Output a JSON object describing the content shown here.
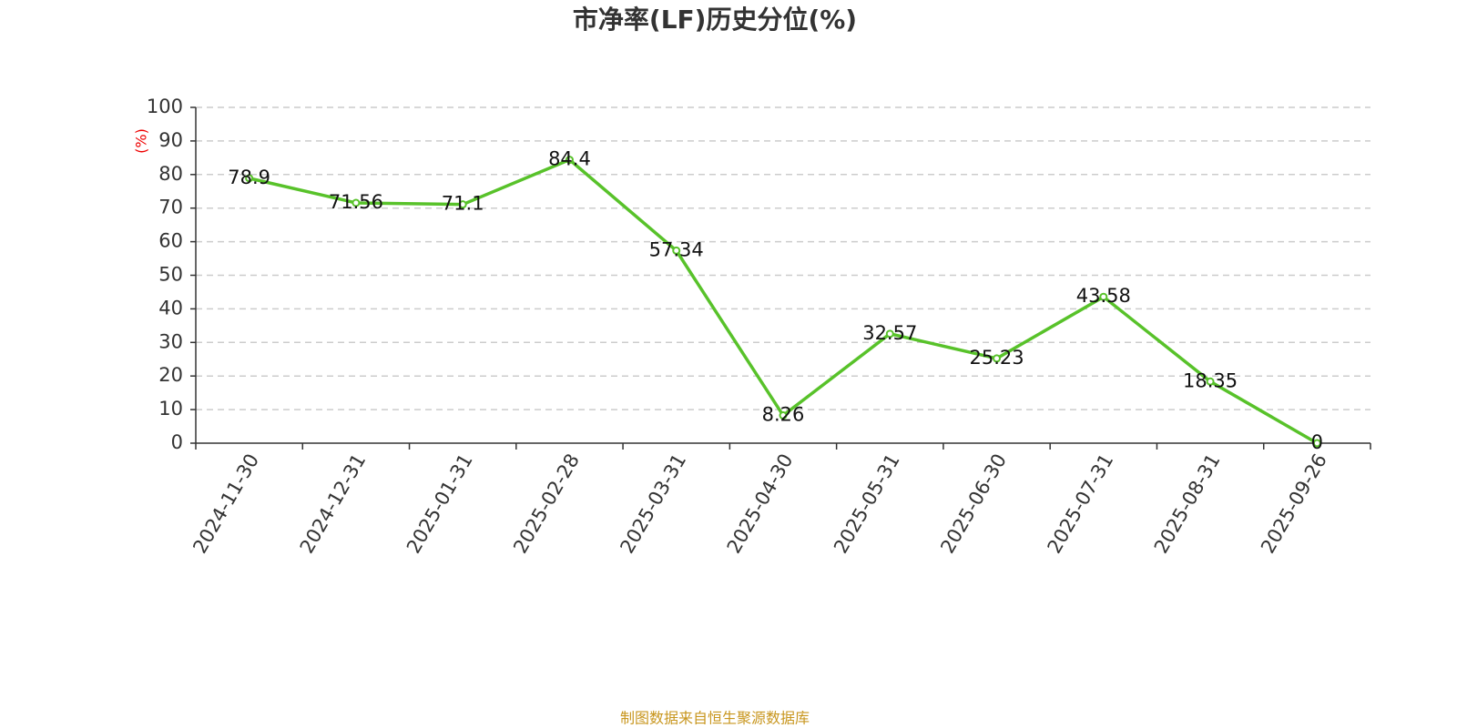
{
  "chart_data": {
    "type": "line",
    "title": "市净率(LF)历史分位(%)",
    "y_label": "(%)",
    "categories": [
      "2024-11-30",
      "2024-12-31",
      "2025-01-31",
      "2025-02-28",
      "2025-03-31",
      "2025-04-30",
      "2025-05-31",
      "2025-06-30",
      "2025-07-31",
      "2025-08-31",
      "2025-09-26"
    ],
    "values": [
      78.9,
      71.56,
      71.1,
      84.4,
      57.34,
      8.26,
      32.57,
      25.23,
      43.58,
      18.35,
      0
    ],
    "color": "#58c22a",
    "ylim": [
      0,
      100
    ],
    "yticks": [
      0,
      10,
      20,
      30,
      40,
      50,
      60,
      70,
      80,
      90,
      100
    ],
    "grid": true,
    "source": "制图数据来自恒生聚源数据库"
  }
}
